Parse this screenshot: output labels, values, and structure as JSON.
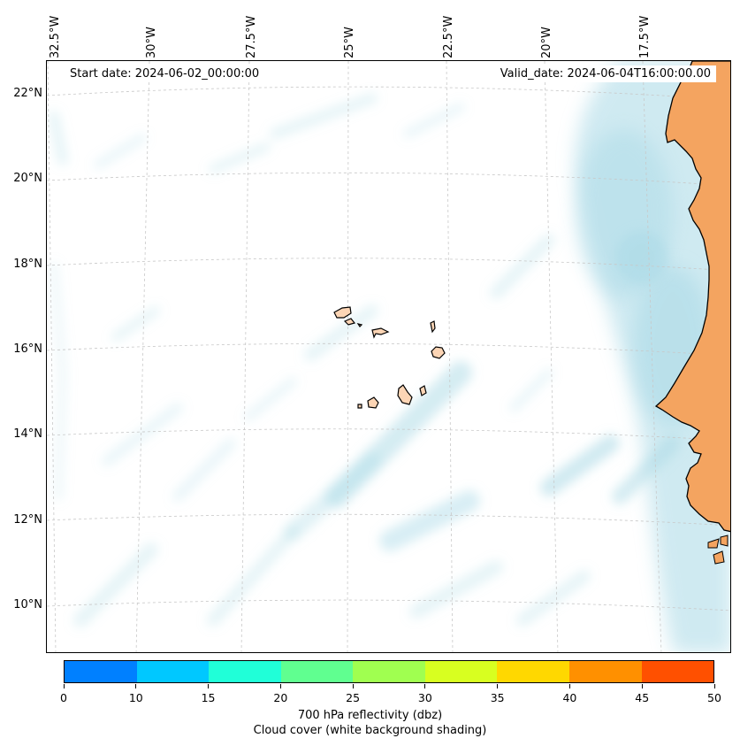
{
  "map": {
    "lon_labels": [
      "32.5°W",
      "30°W",
      "27.5°W",
      "25°W",
      "22.5°W",
      "20°W",
      "17.5°W"
    ],
    "lat_labels": [
      "22°N",
      "20°N",
      "18°N",
      "16°N",
      "14°N",
      "12°N",
      "10°N"
    ],
    "start_date": "Start date: 2024-06-02_00:00:00",
    "valid_date": "Valid_date: 2024-06-04T16:00:00.00",
    "land_color": "#f4a460",
    "island_color": "#fcd5b5",
    "cloud_color": "#a9d9e6",
    "gridline_color": "#c8c8c8"
  },
  "colorbar": {
    "colors": [
      "#0080ff",
      "#00c8ff",
      "#20ffd8",
      "#60ff90",
      "#a0ff50",
      "#d8ff20",
      "#ffd800",
      "#ff9000",
      "#ff5000"
    ],
    "ticks": [
      "0",
      "10",
      "15",
      "20",
      "25",
      "30",
      "35",
      "40",
      "45",
      "50"
    ],
    "title": "700 hPa reflectivity (dbz)",
    "subtitle": "Cloud cover (white background shading)"
  }
}
